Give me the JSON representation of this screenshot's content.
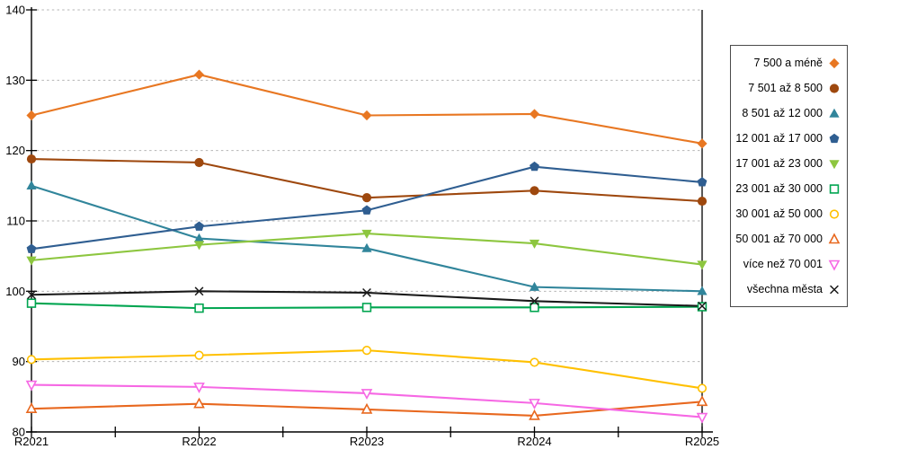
{
  "chart_data": {
    "type": "line",
    "title": "",
    "xlabel": "",
    "ylabel": "",
    "categories": [
      "R2021",
      "R2022",
      "R2023",
      "R2024",
      "R2025"
    ],
    "y_axis": {
      "min": 80,
      "max": 140,
      "step": 10,
      "tick_labels": [
        "80",
        "90",
        "100",
        "110",
        "120",
        "130",
        "140"
      ]
    },
    "grid": {
      "horizontal": true,
      "style": "dashed",
      "color": "#b5b5b5"
    },
    "legend_position": "right",
    "series": [
      {
        "name": "7 500 a méně",
        "marker": "diamond",
        "filled": true,
        "color": "#e87722",
        "values": [
          125.0,
          130.8,
          125.0,
          125.2,
          121.0
        ]
      },
      {
        "name": "7 501 až 8 500",
        "marker": "circle",
        "filled": true,
        "color": "#9e480e",
        "values": [
          118.8,
          118.3,
          113.3,
          114.3,
          112.8
        ]
      },
      {
        "name": "8 501 až 12 000",
        "marker": "triangle-up",
        "filled": true,
        "color": "#31859b",
        "values": [
          115.0,
          107.5,
          106.1,
          100.6,
          100.0
        ]
      },
      {
        "name": "12 001 až 17 000",
        "marker": "pentagon",
        "filled": true,
        "color": "#2f5e91",
        "values": [
          106.0,
          109.2,
          111.5,
          117.7,
          115.5
        ]
      },
      {
        "name": "17 001 až 23 000",
        "marker": "triangle-down",
        "filled": true,
        "color": "#8dc63f",
        "values": [
          104.4,
          106.6,
          108.2,
          106.8,
          103.8
        ]
      },
      {
        "name": "23 001 až 30 000",
        "marker": "square",
        "filled": false,
        "color": "#00a550",
        "values": [
          98.3,
          97.6,
          97.7,
          97.7,
          97.8
        ]
      },
      {
        "name": "30 001 až 50 000",
        "marker": "circle",
        "filled": false,
        "color": "#ffc000",
        "values": [
          90.3,
          90.9,
          91.6,
          89.9,
          86.2
        ]
      },
      {
        "name": "50 001 až 70 000",
        "marker": "triangle-up",
        "filled": false,
        "color": "#e8681f",
        "values": [
          83.3,
          84.0,
          83.2,
          82.3,
          84.3
        ]
      },
      {
        "name": "více než 70 001",
        "marker": "triangle-down",
        "filled": false,
        "color": "#f668e4",
        "values": [
          86.7,
          86.4,
          85.5,
          84.1,
          82.1
        ]
      },
      {
        "name": "všechna města",
        "marker": "x",
        "filled": false,
        "color": "#1a1a1a",
        "values": [
          99.5,
          100.0,
          99.8,
          98.6,
          97.9
        ]
      }
    ]
  }
}
